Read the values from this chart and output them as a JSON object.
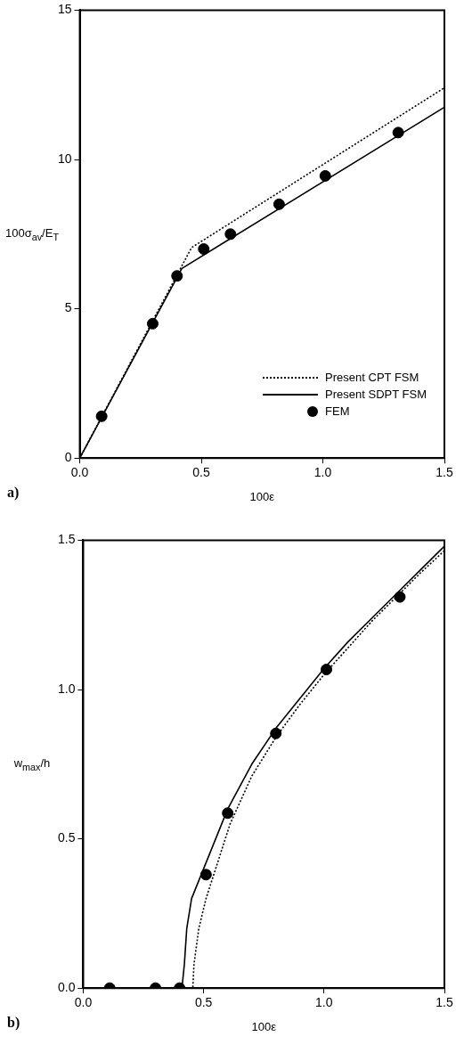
{
  "chart_data": [
    {
      "type": "line",
      "xlabel": "100ε",
      "ylabel": "100σ$_{av}$/E$_{T}$",
      "xlim": [
        0,
        1.5
      ],
      "xticks": [
        {
          "value": 0,
          "label": "0.0"
        },
        {
          "value": 0.5,
          "label": "0.5"
        },
        {
          "value": 1,
          "label": "1.0"
        },
        {
          "value": 1.5,
          "label": "1.5"
        }
      ],
      "ylim": [
        0,
        15
      ],
      "yticks": [
        0,
        5,
        10,
        15
      ],
      "grid": false,
      "legend": "bottom right",
      "annotations": [
        "a)"
      ],
      "series": [
        {
          "name": "Present CPT FSM",
          "line_style": "dotted",
          "marker": "none",
          "color": "#000000",
          "x": [
            0,
            0.46,
            1.5
          ],
          "values": [
            0,
            7.05,
            12.4
          ]
        },
        {
          "name": "Present SDPT FSM",
          "line_style": "solid",
          "marker": "none",
          "color": "#000000",
          "x": [
            0,
            0.42,
            1.5
          ],
          "values": [
            0,
            6.35,
            11.75
          ]
        },
        {
          "name": "FEM",
          "type": "scatter",
          "marker": "circle",
          "color": "#000000",
          "x": [
            0.09,
            0.3,
            0.4,
            0.51,
            0.62,
            0.82,
            1.01,
            1.31
          ],
          "values": [
            1.4,
            4.5,
            6.1,
            7.0,
            7.5,
            8.5,
            9.45,
            10.9
          ]
        }
      ]
    },
    {
      "type": "line",
      "xlabel": "100ε",
      "ylabel": "w$_{max}$/h",
      "xlim": [
        0,
        1.5
      ],
      "xticks": [
        {
          "value": 0,
          "label": "0.0"
        },
        {
          "value": 0.5,
          "label": "0.5"
        },
        {
          "value": 1,
          "label": "1.0"
        },
        {
          "value": 1.5,
          "label": "1.5"
        }
      ],
      "ylim": [
        0,
        1.5
      ],
      "yticks": [
        {
          "value": 0,
          "label": "0.0"
        },
        {
          "value": 0.5,
          "label": "0.5"
        },
        {
          "value": 1,
          "label": "1.0"
        },
        {
          "value": 1.5,
          "label": "1.5"
        }
      ],
      "grid": false,
      "legend": false,
      "annotations": [
        "b)"
      ],
      "series": [
        {
          "line_style": "dotted",
          "marker": "none",
          "color": "#000000",
          "x": [
            0,
            0.455,
            0.46,
            0.48,
            0.51,
            0.55,
            0.61,
            0.7,
            0.8,
            0.9,
            1.0,
            1.1,
            1.2,
            1.3,
            1.4,
            1.5
          ],
          "values": [
            0,
            0,
            0.08,
            0.2,
            0.3,
            0.4,
            0.55,
            0.71,
            0.84,
            0.95,
            1.05,
            1.14,
            1.23,
            1.31,
            1.39,
            1.465
          ]
        },
        {
          "line_style": "solid",
          "marker": "none",
          "color": "#000000",
          "x": [
            0,
            0.41,
            0.42,
            0.43,
            0.45,
            0.5,
            0.6,
            0.7,
            0.8,
            0.9,
            1.0,
            1.1,
            1.2,
            1.3,
            1.4,
            1.5
          ],
          "values": [
            0,
            0,
            0.08,
            0.2,
            0.3,
            0.4,
            0.6,
            0.75,
            0.87,
            0.97,
            1.07,
            1.16,
            1.24,
            1.32,
            1.4,
            1.48
          ]
        },
        {
          "type": "scatter",
          "marker": "circle",
          "color": "#000000",
          "x": [
            0.11,
            0.3,
            0.4,
            0.51,
            0.6,
            0.8,
            1.01,
            1.315
          ],
          "values": [
            0,
            0,
            0,
            0.38,
            0.586,
            0.853,
            1.067,
            1.31
          ]
        }
      ]
    }
  ]
}
